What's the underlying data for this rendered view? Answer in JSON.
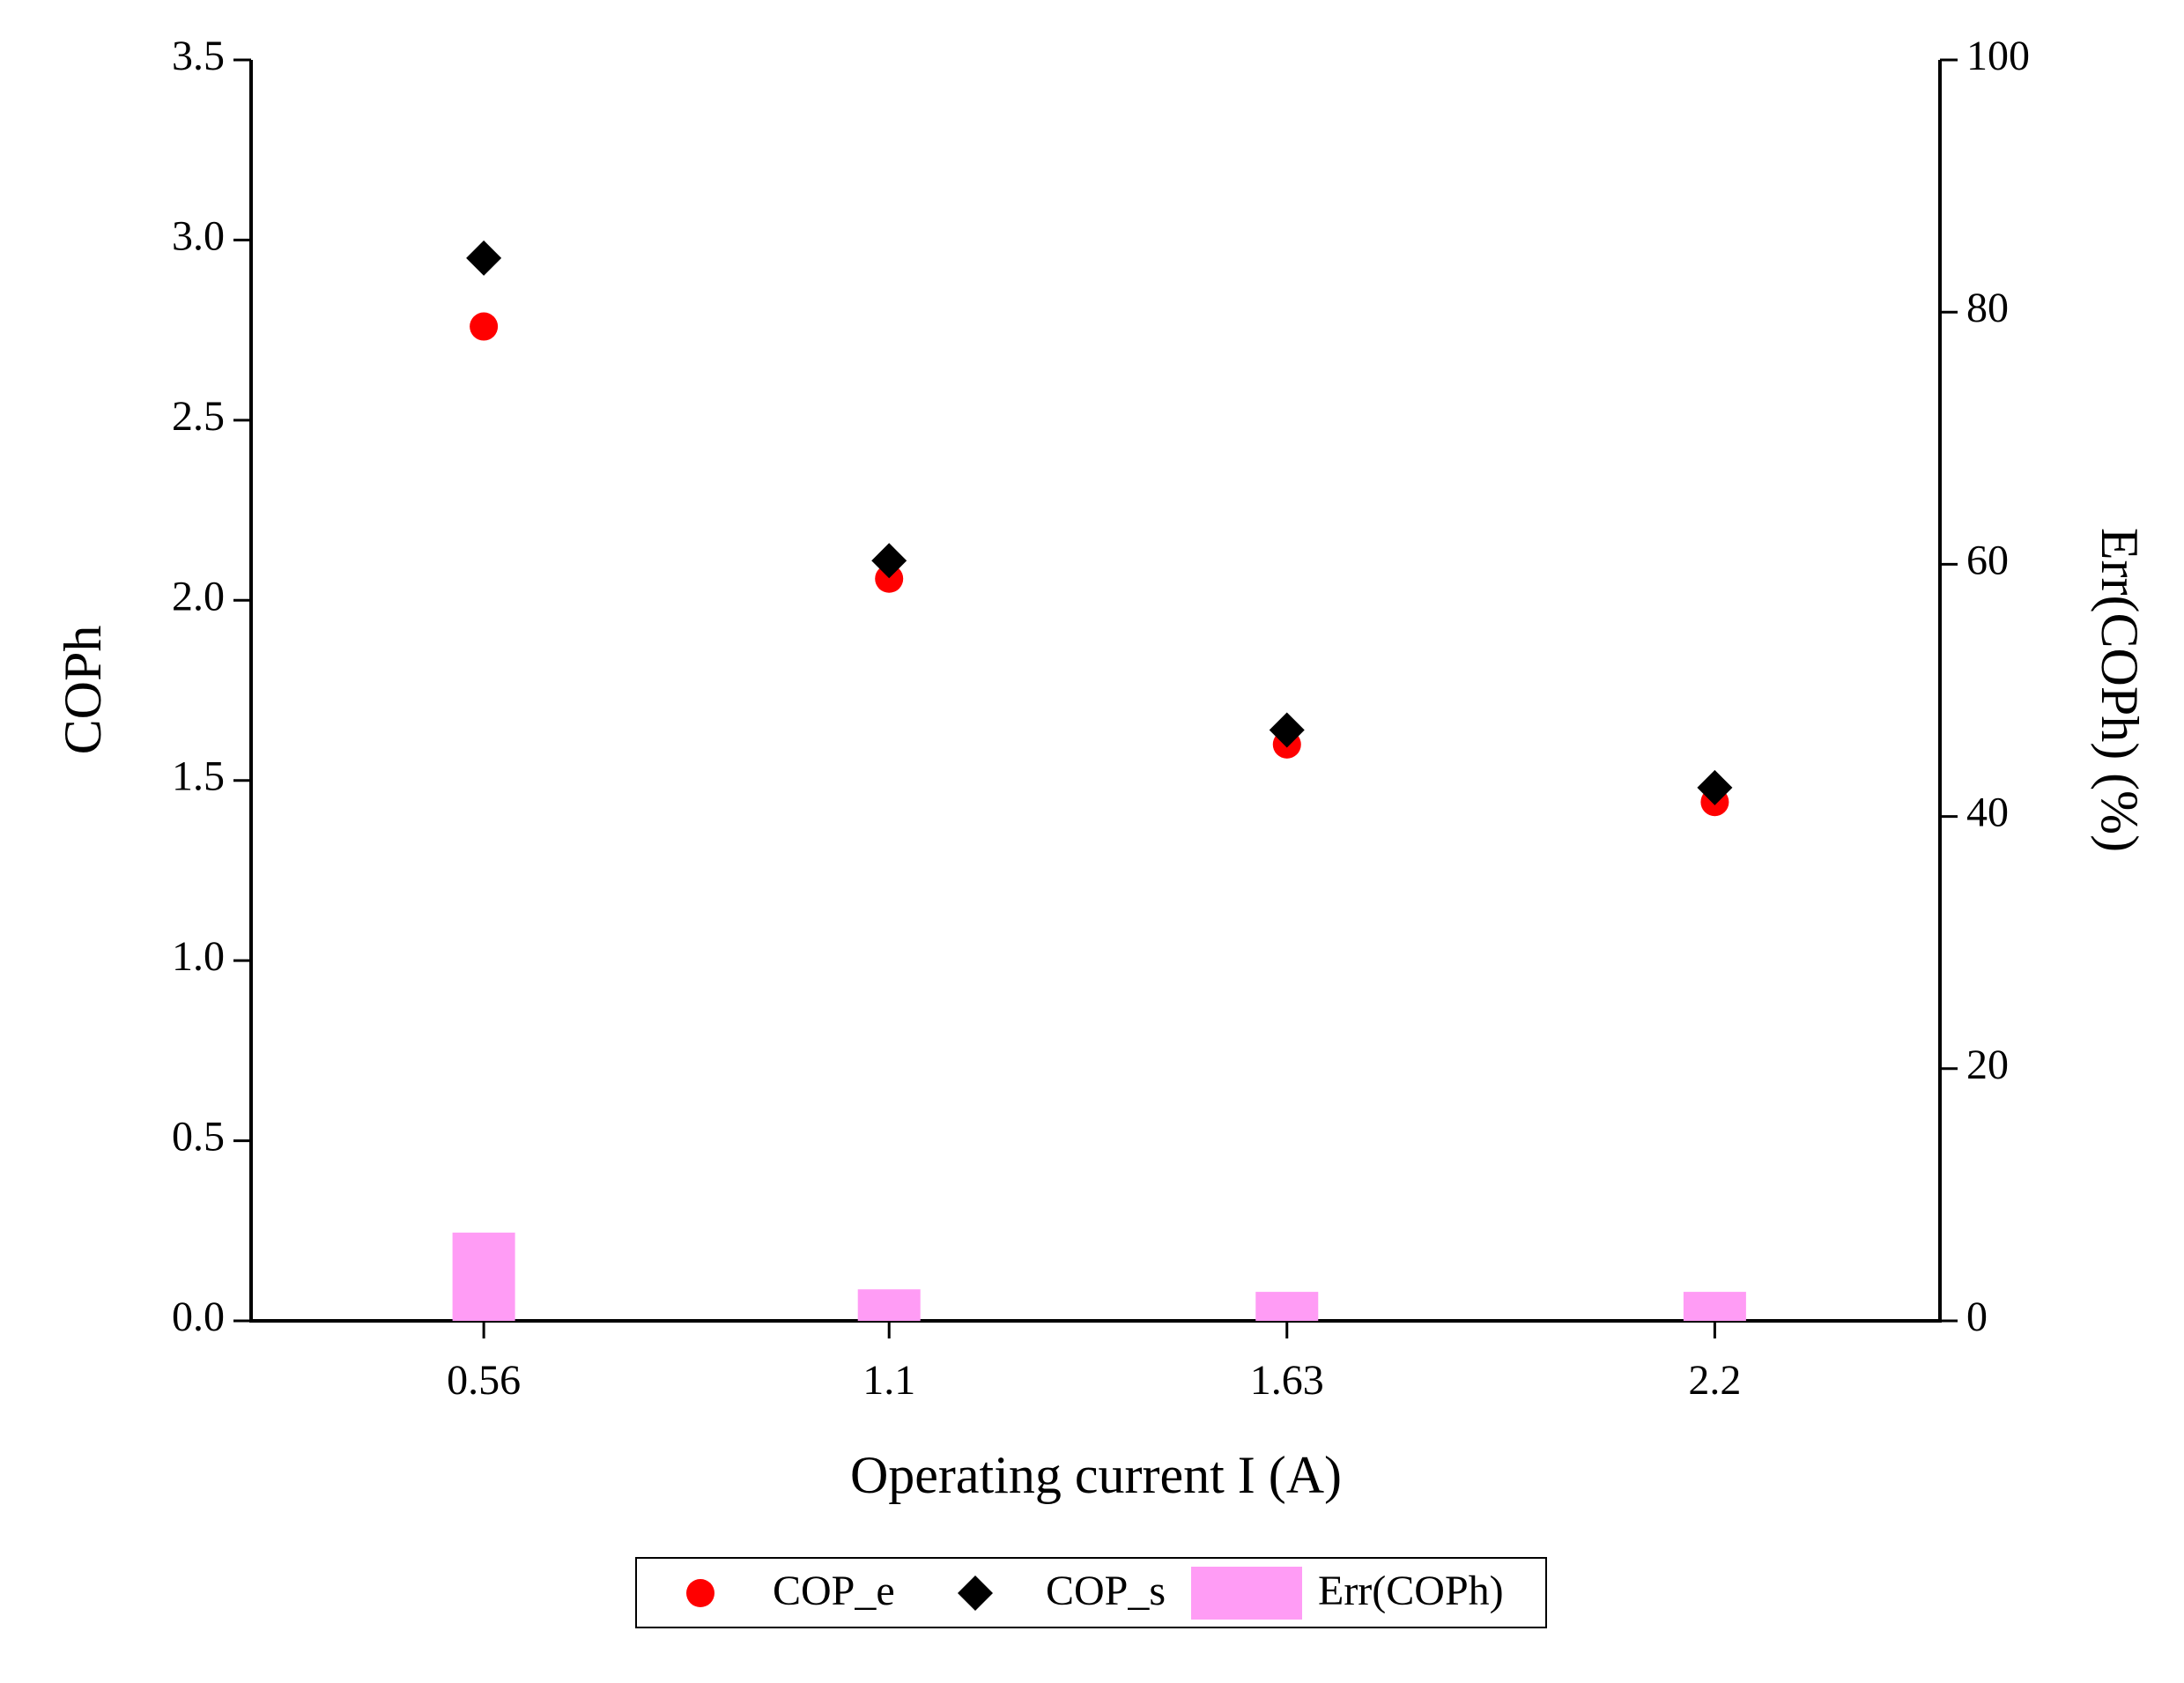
{
  "chart_data": {
    "type": "scatter",
    "x_label": "Operating current I (A)",
    "y_label": "COPh",
    "y2_label": "Err(COPh) (%)",
    "x": [
      0.56,
      1.1,
      1.63,
      2.2
    ],
    "xlim": [
      0.25,
      2.5
    ],
    "xticks": [
      0.56,
      1.1,
      1.63,
      2.2
    ],
    "ylim": [
      0,
      3.5
    ],
    "yticks": [
      {
        "value": 0,
        "label": "0.0"
      },
      0.5,
      {
        "value": 1,
        "label": "1.0"
      },
      1.5,
      {
        "value": 2,
        "label": "2.0"
      },
      2.5,
      {
        "value": 3,
        "label": "3.0"
      },
      3.5
    ],
    "y2lim": [
      0,
      100
    ],
    "y2ticks": [
      0,
      20,
      40,
      60,
      80,
      100
    ],
    "series": [
      {
        "name": "COP_e",
        "color": "#ff0000",
        "marker": "circle",
        "values": [
          2.76,
          2.06,
          1.6,
          1.44
        ]
      },
      {
        "name": "COP_s",
        "color": "#000000",
        "marker": "diamond",
        "values": [
          2.95,
          2.11,
          1.64,
          1.48
        ]
      },
      {
        "name": "Err(COPh)",
        "color": "#ff9cf5",
        "marker": "bar",
        "axis": "y2",
        "values": [
          7.0,
          2.5,
          2.3,
          2.3
        ]
      }
    ],
    "legend": "bottom"
  }
}
